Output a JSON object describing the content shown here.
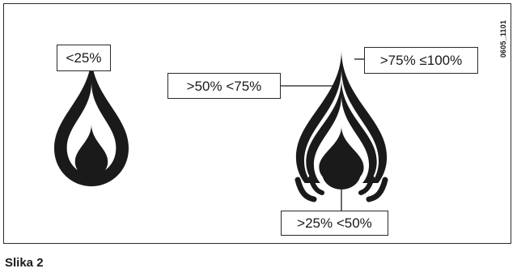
{
  "figure": {
    "labels": {
      "low": "<25%",
      "mid": ">50% <75%",
      "high": ">75% ≤100%",
      "mid_low": ">25% <50%"
    },
    "code": "0605_1101",
    "caption": "Slika 2"
  },
  "colors": {
    "ink": "#1a1a1a",
    "frame": "#2a2a2a",
    "background": "#ffffff"
  },
  "icons": {
    "left_flame": "flame-icon",
    "right_flame": "flame-stack-icon"
  }
}
